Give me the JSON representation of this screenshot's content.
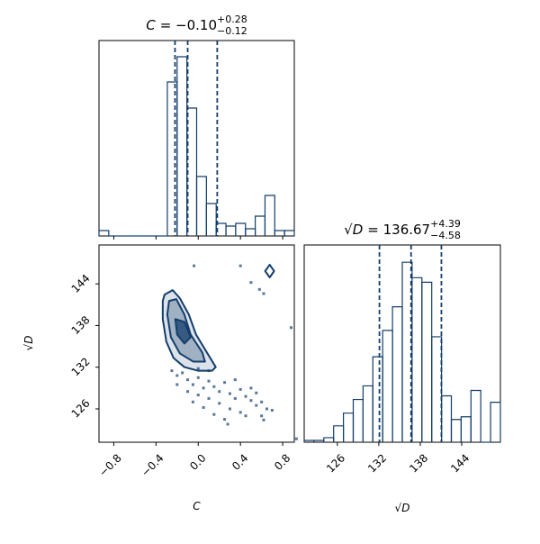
{
  "chart_data": [
    {
      "type": "histogram",
      "title": {
        "lhs": "C",
        "value": "= −0.10",
        "upper": "+0.28",
        "lower": "−0.12"
      },
      "bins": [
        -0.94,
        -0.8475,
        -0.755,
        -0.6625,
        -0.57,
        -0.4775,
        -0.385,
        -0.2925,
        -0.2,
        -0.1075,
        -0.015,
        0.0775,
        0.17,
        0.2625,
        0.355,
        0.4475,
        0.54,
        0.6325,
        0.725,
        0.8175,
        0.91
      ],
      "counts": [
        6,
        0,
        0,
        0,
        0,
        0,
        0,
        171,
        199,
        142,
        66,
        36,
        14,
        11,
        14,
        8,
        22,
        45,
        6,
        6
      ],
      "quantiles": [
        -0.22,
        -0.1,
        0.18
      ],
      "xlim": [
        -0.94,
        0.91
      ],
      "ylim": [
        0,
        217
      ],
      "xticks": [
        {
          "value": -0.8,
          "label": "−0.8"
        },
        {
          "value": -0.4,
          "label": "−0.4"
        },
        {
          "value": 0,
          "label": "0.0"
        },
        0.4,
        0.8
      ],
      "color": "#133e6b"
    },
    {
      "type": "scatter",
      "xlabel": "C",
      "ylabel": "√D",
      "xlim": [
        -0.94,
        0.91
      ],
      "ylim": [
        121.2,
        149.6
      ],
      "xticks": [
        {
          "value": -0.8,
          "label": "−0.8"
        },
        {
          "value": -0.4,
          "label": "−0.4"
        },
        {
          "value": 0,
          "label": "0.0"
        },
        0.4,
        0.8
      ],
      "yticks": [
        126,
        132,
        138,
        144
      ],
      "points": {
        "x": [
          -0.25,
          -0.2,
          -0.15,
          -0.1,
          -0.05,
          0.0,
          0.05,
          0.1,
          0.15,
          0.2,
          0.25,
          0.3,
          0.35,
          0.4,
          0.45,
          0.5,
          0.55,
          0.6,
          0.65,
          0.7,
          0.1,
          0.0,
          -0.1,
          0.2,
          0.3,
          0.4,
          0.15,
          0.25,
          0.05,
          -0.05,
          0.35,
          0.5,
          0.45,
          0.6,
          0.1,
          -0.2,
          0.0,
          0.28,
          0.55,
          0.62,
          -0.04,
          0.4,
          0.5,
          0.58,
          0.62,
          0.88,
          0.93
        ],
        "y": [
          131.5,
          130.8,
          131.2,
          130.2,
          129.5,
          130.5,
          129.0,
          130.0,
          129.2,
          128.5,
          129.8,
          128.2,
          127.5,
          128.8,
          127.8,
          127.2,
          126.5,
          127.0,
          126.0,
          125.8,
          127.5,
          128.0,
          128.5,
          126.8,
          126.0,
          125.5,
          125.2,
          124.5,
          126.2,
          127.0,
          130.2,
          129.0,
          125.0,
          125.0,
          131.5,
          129.5,
          131.8,
          123.8,
          128.3,
          124.4,
          146.6,
          146.6,
          144.2,
          143.2,
          142.6,
          137.7,
          121.7
        ]
      },
      "contours": [
        {
          "x": [
            -0.319,
            -0.242,
            -0.174,
            -0.089,
            -0.021,
            0.098,
            0.166,
            0.132,
            -0.004,
            -0.131,
            -0.234,
            -0.302,
            -0.336,
            -0.336
          ],
          "y": [
            142.45,
            143.1,
            141.93,
            139.58,
            136.71,
            133.72,
            132.02,
            131.5,
            131.5,
            132.02,
            133.33,
            135.67,
            138.93,
            141.54
          ]
        },
        {
          "x": [
            -0.276,
            -0.208,
            -0.131,
            -0.072,
            0.039,
            0.064,
            -0.046,
            -0.174,
            -0.259,
            -0.293
          ],
          "y": [
            141.54,
            141.8,
            139.58,
            136.71,
            134.11,
            132.8,
            132.8,
            133.98,
            136.32,
            139.58
          ]
        },
        {
          "x": [
            -0.217,
            -0.131,
            -0.072,
            -0.131,
            -0.2
          ],
          "y": [
            138.93,
            138.54,
            136.32,
            135.41,
            136.71
          ]
        },
        {
          "x": [
            0.634,
            0.677,
            0.719,
            0.677
          ],
          "y": [
            145.84,
            146.75,
            145.84,
            144.93
          ]
        }
      ],
      "color": "#133e6b"
    },
    {
      "type": "histogram",
      "title": {
        "lhs": "√D",
        "value": "= 136.67",
        "upper": "+4.39",
        "lower": "−4.58"
      },
      "xlabel": "√D",
      "bins": [
        121.2,
        122.62,
        124.04,
        125.46,
        126.88,
        128.3,
        129.72,
        131.14,
        132.56,
        133.98,
        135.4,
        136.82,
        138.24,
        139.66,
        141.08,
        142.5,
        143.92,
        145.34,
        146.76,
        148.18,
        149.6
      ],
      "counts": [
        2,
        2,
        5,
        18,
        32,
        47,
        62,
        94,
        123,
        149,
        198,
        181,
        176,
        116,
        51,
        25,
        28,
        57,
        0,
        44
      ],
      "quantiles": [
        132.09,
        136.67,
        141.06
      ],
      "xlim": [
        121.2,
        149.6
      ],
      "ylim": [
        0,
        217
      ],
      "xticks": [
        126,
        132,
        138,
        144
      ],
      "color": "#133e6b"
    }
  ]
}
